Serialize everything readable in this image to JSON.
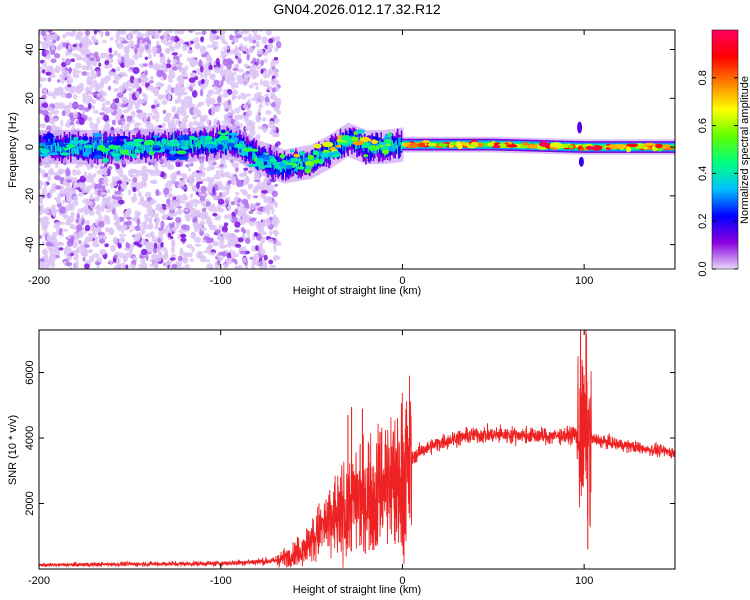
{
  "title": "GN04.2026.012.17.32.R12",
  "chart_data": [
    {
      "type": "heatmap",
      "xlabel": "Height of straight line (km)",
      "ylabel": "Frequency (Hz)",
      "xlim": [
        -200,
        150
      ],
      "ylim": [
        -50,
        48
      ],
      "xticks": [
        -200,
        -100,
        0,
        100
      ],
      "yticks": [
        -40,
        -20,
        0,
        20,
        40
      ],
      "colorbar": {
        "label": "Normalized spectral amplitude",
        "range": [
          0,
          1
        ],
        "ticks": [
          0.0,
          0.2,
          0.4,
          0.6,
          0.8
        ],
        "colormap": [
          "#e8d8f8",
          "#8a00e0",
          "#0000ff",
          "#00c0ff",
          "#00ff80",
          "#60ff00",
          "#ffff00",
          "#ff8000",
          "#ff0000",
          "#ff0060"
        ]
      },
      "ridge": [
        {
          "x": -200,
          "y": 0
        },
        {
          "x": -150,
          "y": 0
        },
        {
          "x": -115,
          "y": 1
        },
        {
          "x": -100,
          "y": 2
        },
        {
          "x": -90,
          "y": 1
        },
        {
          "x": -80,
          "y": -4
        },
        {
          "x": -65,
          "y": -8
        },
        {
          "x": -50,
          "y": -6
        },
        {
          "x": -40,
          "y": -2
        },
        {
          "x": -30,
          "y": 3
        },
        {
          "x": -20,
          "y": 0
        },
        {
          "x": -10,
          "y": 0
        },
        {
          "x": 0,
          "y": 1
        },
        {
          "x": 50,
          "y": 1
        },
        {
          "x": 100,
          "y": 0
        },
        {
          "x": 150,
          "y": 0
        }
      ]
    },
    {
      "type": "line",
      "xlabel": "Height of straight line (km)",
      "ylabel": "SNR (10 * v/v)",
      "xlim": [
        -200,
        150
      ],
      "ylim": [
        0,
        7300
      ],
      "xticks": [
        -200,
        -100,
        0,
        100
      ],
      "yticks": [
        2000,
        4000,
        6000
      ],
      "color": "#ee2222",
      "envelope": [
        {
          "x": -200,
          "y": 120
        },
        {
          "x": -150,
          "y": 150
        },
        {
          "x": -100,
          "y": 170
        },
        {
          "x": -70,
          "y": 250
        },
        {
          "x": -60,
          "y": 450
        },
        {
          "x": -50,
          "y": 900
        },
        {
          "x": -40,
          "y": 1500
        },
        {
          "x": -30,
          "y": 2000
        },
        {
          "x": -20,
          "y": 2300
        },
        {
          "x": -10,
          "y": 2700
        },
        {
          "x": 0,
          "y": 3100
        },
        {
          "x": 10,
          "y": 3600
        },
        {
          "x": 20,
          "y": 3850
        },
        {
          "x": 30,
          "y": 4000
        },
        {
          "x": 40,
          "y": 4100
        },
        {
          "x": 60,
          "y": 4100
        },
        {
          "x": 80,
          "y": 4050
        },
        {
          "x": 95,
          "y": 4100
        },
        {
          "x": 100,
          "y": 4000
        },
        {
          "x": 110,
          "y": 3900
        },
        {
          "x": 130,
          "y": 3700
        },
        {
          "x": 150,
          "y": 3550
        }
      ],
      "peaks": [
        {
          "x": -30,
          "y": 4700
        },
        {
          "x": -28,
          "y": 4950
        },
        {
          "x": -22,
          "y": 4900
        },
        {
          "x": -5,
          "y": 4200
        },
        {
          "x": 98,
          "y": 7300
        },
        {
          "x": 101,
          "y": 7300
        },
        {
          "x": 102,
          "y": 600
        }
      ]
    }
  ]
}
